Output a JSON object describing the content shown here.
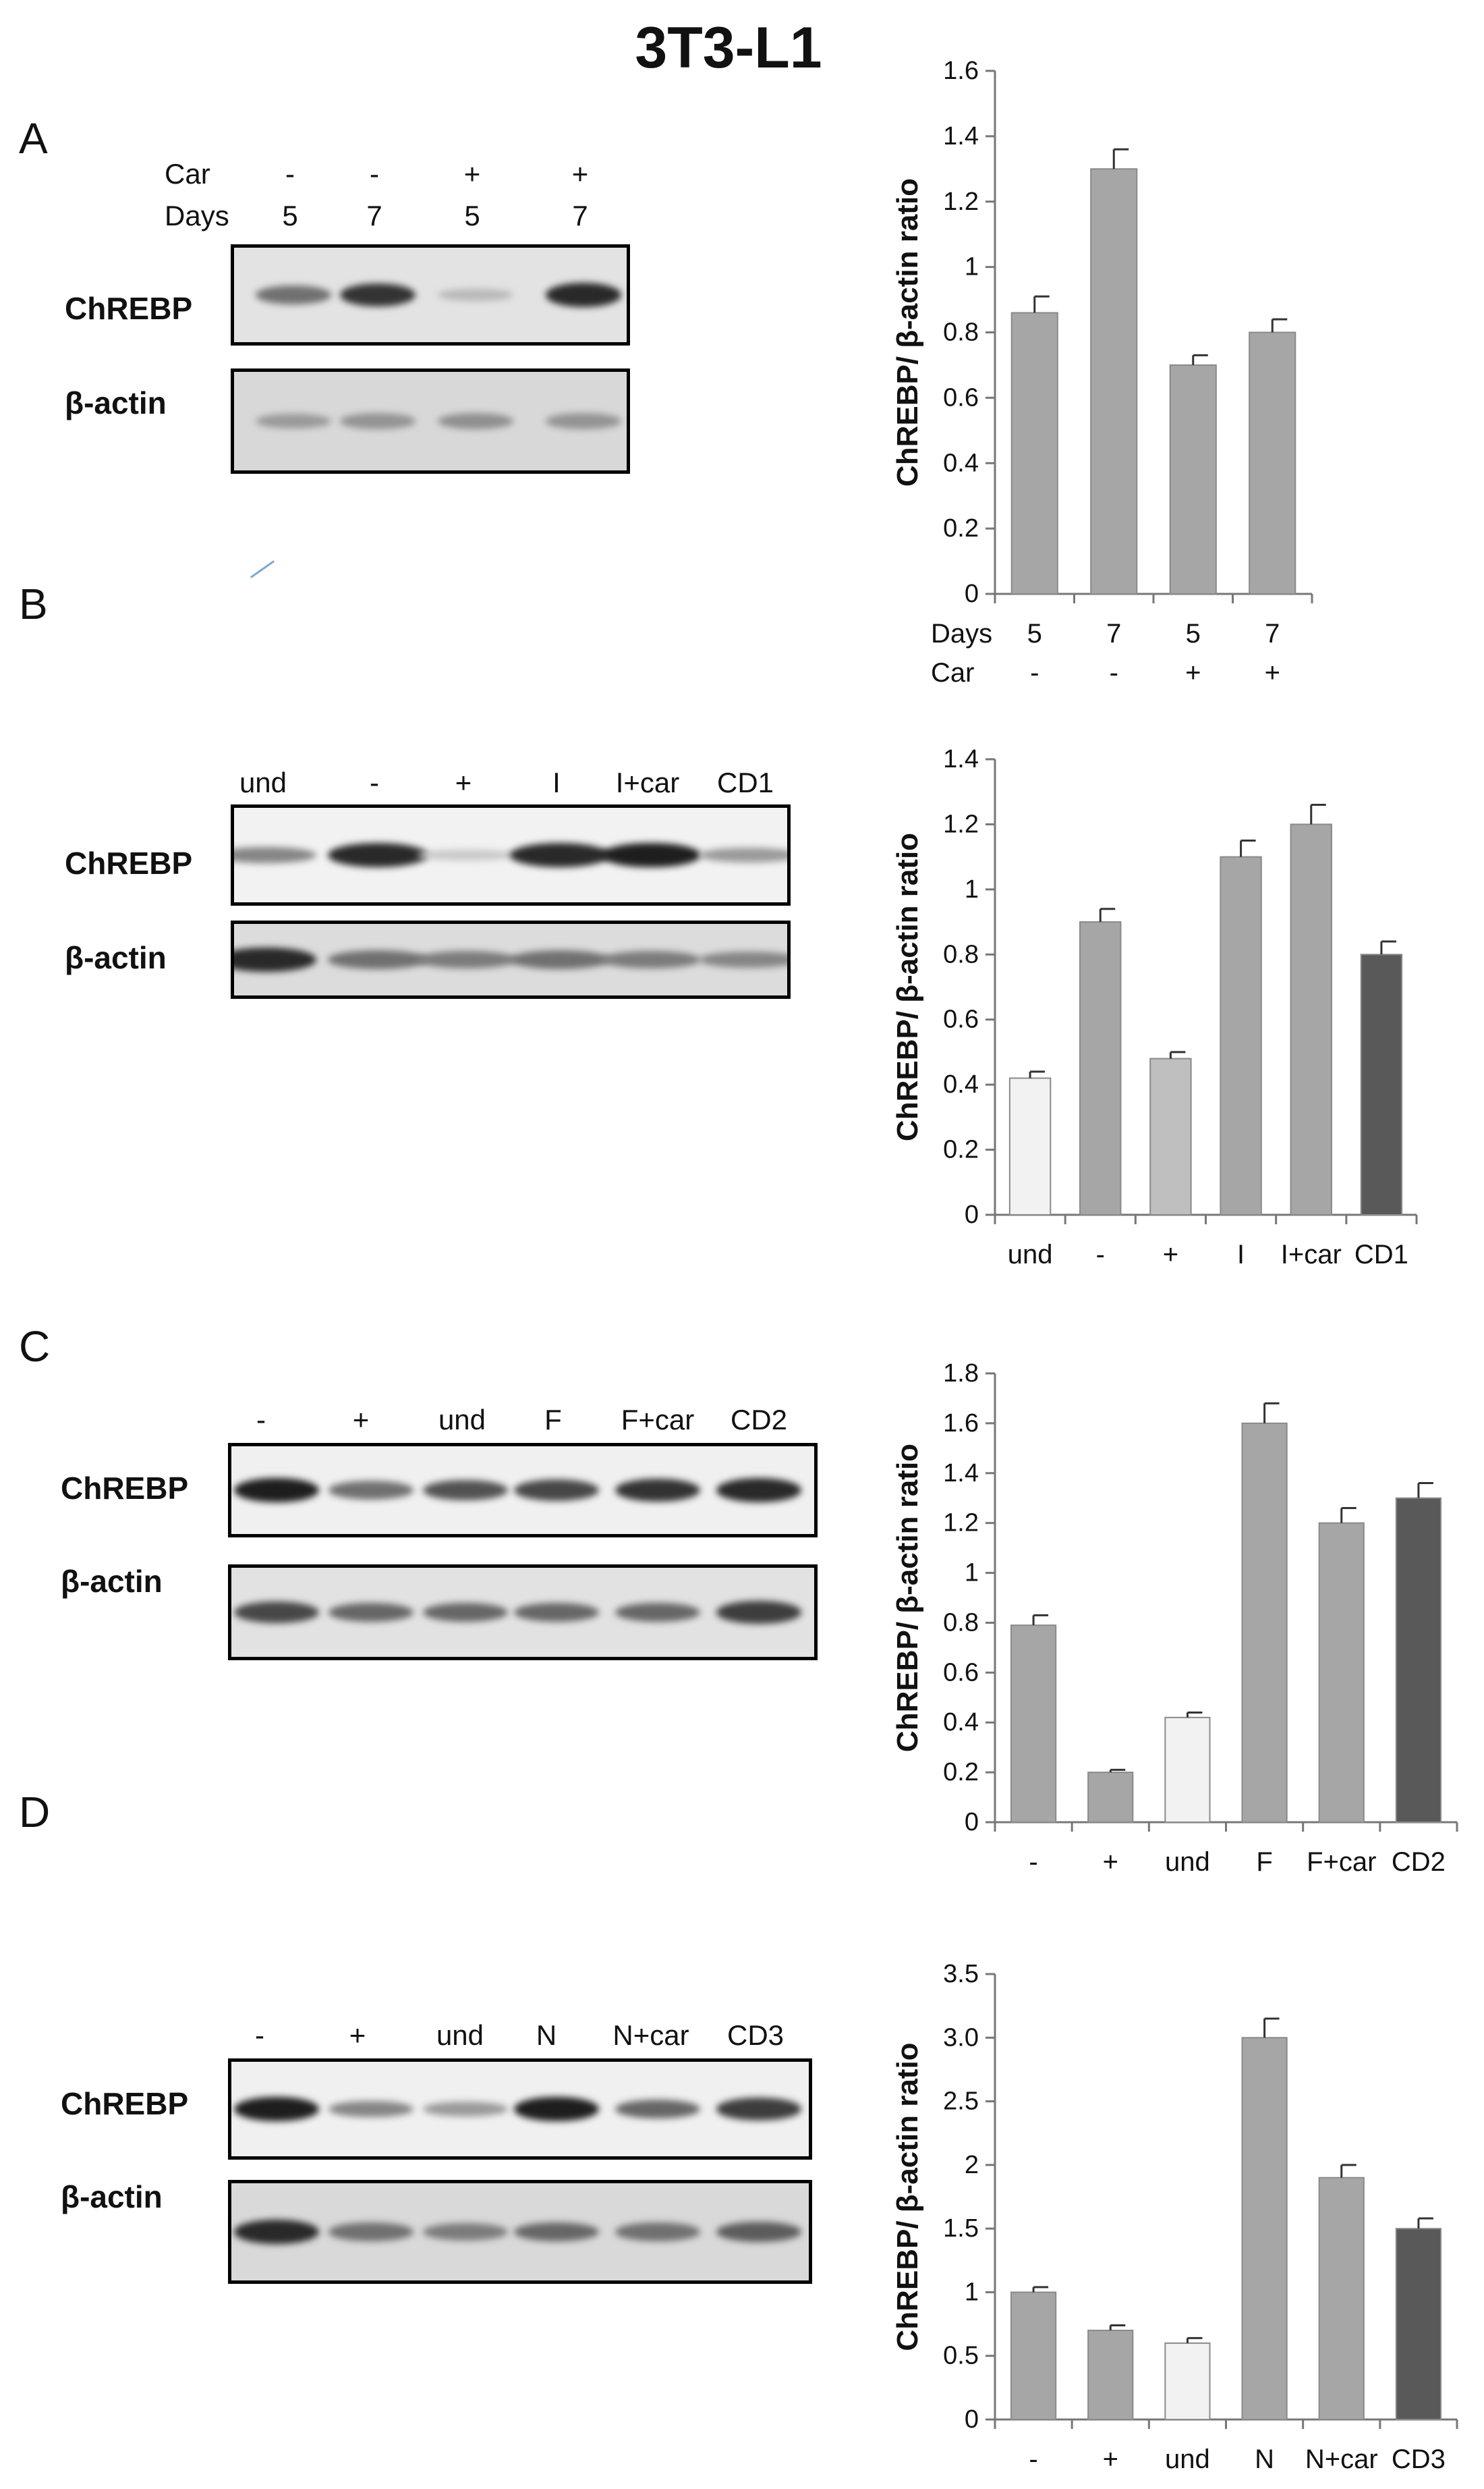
{
  "figure": {
    "title": "3T3-L1",
    "panels": [
      {
        "letter": "A",
        "header_rows": [
          {
            "label": "Car",
            "values": [
              "-",
              "-",
              "+",
              "+"
            ]
          },
          {
            "label": "Days",
            "values": [
              "5",
              "7",
              "5",
              "7"
            ]
          }
        ],
        "blots": [
          {
            "name": "ChREBP",
            "intensity": [
              0.55,
              0.85,
              0.2,
              0.9
            ]
          },
          {
            "name": "β-actin",
            "intensity": [
              0.35,
              0.38,
              0.4,
              0.38
            ]
          }
        ]
      },
      {
        "letter": "B",
        "lanes": [
          "und",
          "-",
          "+",
          "I",
          "I+car",
          "CD1"
        ],
        "blots": [
          {
            "name": "ChREBP",
            "intensity": [
              0.45,
              0.9,
              0.12,
              0.9,
              0.95,
              0.35
            ]
          },
          {
            "name": "β-actin",
            "intensity": [
              0.9,
              0.55,
              0.5,
              0.55,
              0.5,
              0.45
            ]
          }
        ]
      },
      {
        "letter": "C",
        "lanes": [
          "-",
          "+",
          "und",
          "F",
          "F+car",
          "CD2"
        ],
        "blots": [
          {
            "name": "ChREBP",
            "intensity": [
              0.95,
              0.55,
              0.7,
              0.75,
              0.85,
              0.9
            ]
          },
          {
            "name": "β-actin",
            "intensity": [
              0.75,
              0.6,
              0.6,
              0.6,
              0.6,
              0.8
            ]
          }
        ]
      },
      {
        "letter": "D",
        "lanes": [
          "-",
          "+",
          "und",
          "N",
          "N+car",
          "CD3"
        ],
        "blots": [
          {
            "name": "ChREBP",
            "intensity": [
              0.95,
              0.45,
              0.35,
              0.95,
              0.6,
              0.8
            ]
          },
          {
            "name": "β-actin",
            "intensity": [
              0.9,
              0.55,
              0.5,
              0.6,
              0.55,
              0.65
            ]
          }
        ]
      }
    ]
  },
  "chart_data": [
    {
      "type": "bar",
      "panel": "A",
      "ylabel": "ChREBP/ β-actin ratio",
      "ylim": [
        0,
        1.6
      ],
      "yticks": [
        "0",
        "0.2",
        "0.4",
        "0.6",
        "0.8",
        "1",
        "1.2",
        "1.4",
        "1.6"
      ],
      "category_rows": [
        {
          "label": "Days",
          "values": [
            "5",
            "7",
            "5",
            "7"
          ]
        },
        {
          "label": "Car",
          "values": [
            "-",
            "-",
            "+",
            "+"
          ]
        }
      ],
      "values": [
        0.86,
        1.3,
        0.7,
        0.8
      ],
      "errors": [
        0.05,
        0.06,
        0.03,
        0.04
      ],
      "colors": [
        "#a6a6a6",
        "#a6a6a6",
        "#a6a6a6",
        "#a6a6a6"
      ]
    },
    {
      "type": "bar",
      "panel": "B",
      "ylabel": "ChREBP/ β-actin ratio",
      "ylim": [
        0,
        1.4
      ],
      "yticks": [
        "0",
        "0.2",
        "0.4",
        "0.6",
        "0.8",
        "1",
        "1.2",
        "1.4"
      ],
      "categories": [
        "und",
        "-",
        "+",
        "I",
        "I+car",
        "CD1"
      ],
      "values": [
        0.42,
        0.9,
        0.48,
        1.1,
        1.2,
        0.8
      ],
      "errors": [
        0.02,
        0.04,
        0.02,
        0.05,
        0.06,
        0.04
      ],
      "colors": [
        "#f2f2f2",
        "#a6a6a6",
        "#bfbfbf",
        "#a6a6a6",
        "#a6a6a6",
        "#595959"
      ]
    },
    {
      "type": "bar",
      "panel": "C",
      "ylabel": "ChREBP/ β-actin ratio",
      "ylim": [
        0,
        1.8
      ],
      "yticks": [
        "0",
        "0.2",
        "0.4",
        "0.6",
        "0.8",
        "1",
        "1.2",
        "1.4",
        "1.6",
        "1.8"
      ],
      "categories": [
        "-",
        "+",
        "und",
        "F",
        "F+car",
        "CD2"
      ],
      "values": [
        0.79,
        0.2,
        0.42,
        1.6,
        1.2,
        1.3
      ],
      "errors": [
        0.04,
        0.01,
        0.02,
        0.08,
        0.06,
        0.06
      ],
      "colors": [
        "#a6a6a6",
        "#a6a6a6",
        "#f2f2f2",
        "#a6a6a6",
        "#a6a6a6",
        "#595959"
      ]
    },
    {
      "type": "bar",
      "panel": "D",
      "ylabel": "ChREBP/ β-actin ratio",
      "ylim": [
        0,
        3.5
      ],
      "yticks": [
        "0",
        "0.5",
        "1",
        "1.5",
        "2",
        "2.5",
        "3.0",
        "3.5"
      ],
      "categories": [
        "-",
        "+",
        "und",
        "N",
        "N+car",
        "CD3"
      ],
      "values": [
        1.0,
        0.7,
        0.6,
        3.0,
        1.9,
        1.5
      ],
      "errors": [
        0.04,
        0.04,
        0.04,
        0.15,
        0.1,
        0.08
      ],
      "colors": [
        "#a6a6a6",
        "#a6a6a6",
        "#f2f2f2",
        "#a6a6a6",
        "#a6a6a6",
        "#595959"
      ]
    }
  ]
}
